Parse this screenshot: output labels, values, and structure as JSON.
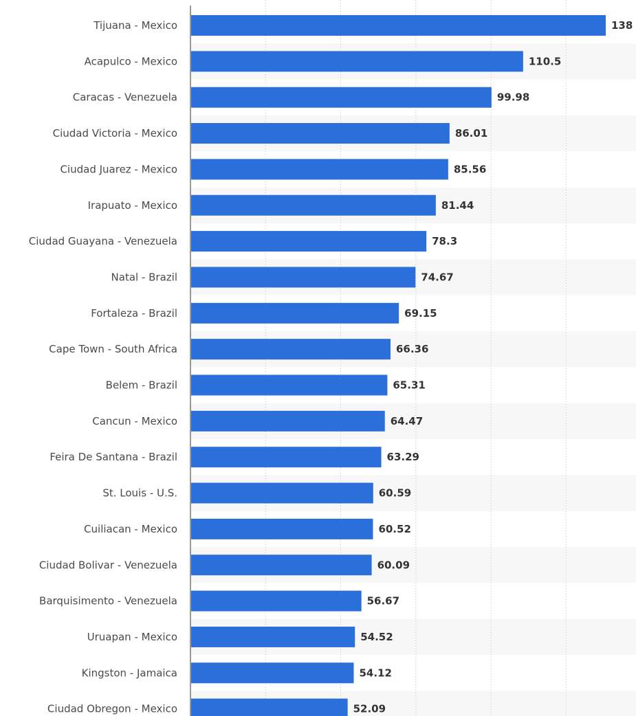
{
  "chart_data": {
    "type": "bar",
    "orientation": "horizontal",
    "categories": [
      "Tijuana - Mexico",
      "Acapulco - Mexico",
      "Caracas - Venezuela",
      "Ciudad Victoria - Mexico",
      "Ciudad Juarez - Mexico",
      "Irapuato - Mexico",
      "Ciudad Guayana - Venezuela",
      "Natal - Brazil",
      "Fortaleza - Brazil",
      "Cape Town - South Africa",
      "Belem - Brazil",
      "Cancun - Mexico",
      "Feira De Santana - Brazil",
      "St. Louis - U.S.",
      "Cuiliacan - Mexico",
      "Ciudad Bolivar - Venezuela",
      "Barquisimento - Venezuela",
      "Uruapan - Mexico",
      "Kingston - Jamaica",
      "Ciudad Obregon - Mexico"
    ],
    "values": [
      138,
      110.5,
      99.98,
      86.01,
      85.56,
      81.44,
      78.3,
      74.67,
      69.15,
      66.36,
      65.31,
      64.47,
      63.29,
      60.59,
      60.52,
      60.09,
      56.67,
      54.52,
      54.12,
      52.09
    ],
    "value_labels": [
      "138",
      "110.5",
      "99.98",
      "86.01",
      "85.56",
      "81.44",
      "78.3",
      "74.67",
      "69.15",
      "66.36",
      "65.31",
      "64.47",
      "63.29",
      "60.59",
      "60.52",
      "60.09",
      "56.67",
      "54.52",
      "54.12",
      "52.09"
    ],
    "title": "",
    "xlabel": "",
    "ylabel": "",
    "xlim": [
      0,
      150
    ],
    "grid": true,
    "bar_color": "#2b6fdb",
    "stripe_color": "#f7f7f7"
  }
}
